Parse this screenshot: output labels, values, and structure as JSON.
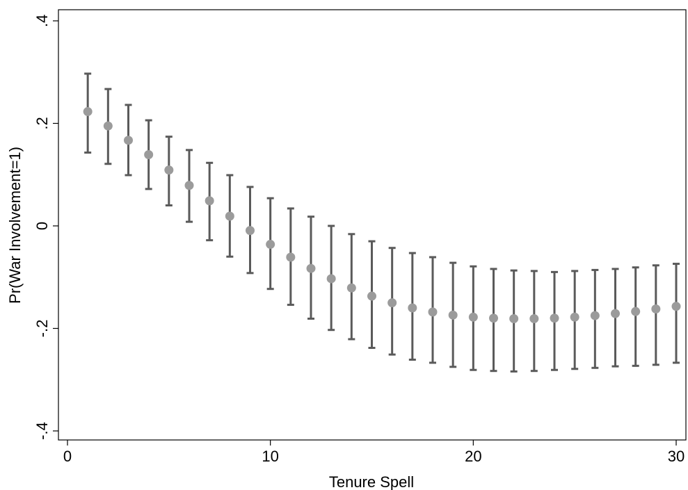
{
  "chart_data": {
    "type": "scatter",
    "title": "",
    "xlabel": "Tenure Spell",
    "ylabel": "Pr(War Involvement=1)",
    "xlim": [
      0,
      30
    ],
    "ylim": [
      -0.4,
      0.4
    ],
    "x_ticks": [
      0,
      10,
      20,
      30
    ],
    "x_tick_labels": [
      "0",
      "10",
      "20",
      "30"
    ],
    "y_ticks": [
      -0.4,
      -0.2,
      0,
      0.2,
      0.4
    ],
    "y_tick_labels": [
      "-.4",
      "-.2",
      "0",
      ".2",
      ".4"
    ],
    "grid": false,
    "colors": {
      "marker": "#9b9b9b",
      "errorbar": "#5a5a5a",
      "axis": "#000000",
      "frame": "#000000"
    },
    "series": [
      {
        "x": [
          1,
          2,
          3,
          4,
          5,
          6,
          7,
          8,
          9,
          10,
          11,
          12,
          13,
          14,
          15,
          16,
          17,
          18,
          19,
          20,
          21,
          22,
          23,
          24,
          25,
          26,
          27,
          28,
          29,
          30
        ],
        "y": [
          0.223,
          0.195,
          0.167,
          0.139,
          0.109,
          0.079,
          0.049,
          0.019,
          -0.009,
          -0.036,
          -0.061,
          -0.083,
          -0.103,
          -0.121,
          -0.137,
          -0.15,
          -0.16,
          -0.168,
          -0.174,
          -0.178,
          -0.18,
          -0.181,
          -0.181,
          -0.18,
          -0.178,
          -0.175,
          -0.171,
          -0.167,
          -0.162,
          -0.157
        ],
        "ci_upper": [
          0.297,
          0.267,
          0.236,
          0.206,
          0.174,
          0.148,
          0.123,
          0.099,
          0.076,
          0.054,
          0.034,
          0.018,
          0.0,
          -0.016,
          -0.03,
          -0.043,
          -0.053,
          -0.061,
          -0.072,
          -0.079,
          -0.084,
          -0.087,
          -0.088,
          -0.09,
          -0.088,
          -0.086,
          -0.084,
          -0.081,
          -0.077,
          -0.074
        ],
        "ci_lower": [
          0.143,
          0.121,
          0.099,
          0.072,
          0.04,
          0.008,
          -0.028,
          -0.06,
          -0.092,
          -0.123,
          -0.154,
          -0.181,
          -0.203,
          -0.221,
          -0.238,
          -0.251,
          -0.261,
          -0.267,
          -0.275,
          -0.281,
          -0.283,
          -0.284,
          -0.283,
          -0.281,
          -0.279,
          -0.277,
          -0.274,
          -0.273,
          -0.271,
          -0.267
        ]
      }
    ]
  }
}
